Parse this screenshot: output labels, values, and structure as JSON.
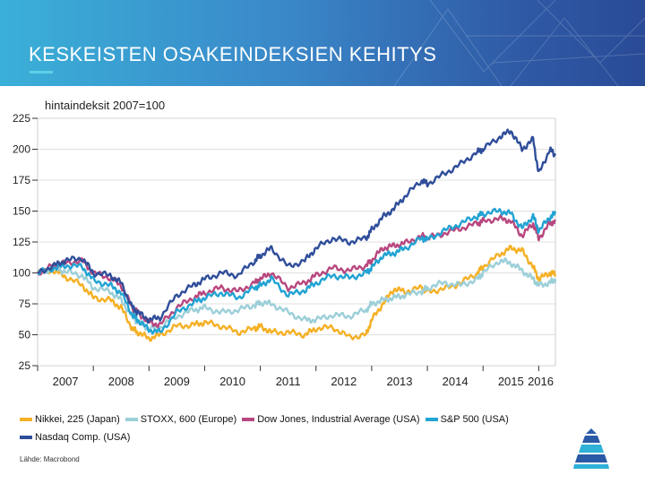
{
  "header": {
    "title": "KESKEISTEN OSAKEINDEKSIEN KEHITYS"
  },
  "subtitle": "hintaindeksit 2007=100",
  "source": "Lähde: Macrobond",
  "colors": {
    "nikkei": "#f5b025",
    "stoxx": "#9ccfd8",
    "dowjones": "#b8477f",
    "sp500": "#22a3d3",
    "nasdaq": "#2f4e9a",
    "grid": "#d6d6d6"
  },
  "chart_data": {
    "type": "line",
    "title": "KESKEISTEN OSAKEINDEKSIEN KEHITYS",
    "ylabel": "hintaindeksit 2007=100",
    "xlabel": "",
    "ylim": [
      25,
      225
    ],
    "xlim": [
      2007.0,
      2016.3
    ],
    "yticks": [
      25,
      50,
      75,
      100,
      125,
      150,
      175,
      200,
      225
    ],
    "xtick_labels": [
      "2007",
      "2008",
      "2009",
      "2010",
      "2011",
      "2012",
      "2013",
      "2014",
      "2015",
      "2016"
    ],
    "grid": true,
    "legend_position": "bottom",
    "series": [
      {
        "key": "nikkei",
        "name": "Nikkei, 225 (Japan)",
        "x": [
          2007.0,
          2007.3,
          2007.5,
          2007.8,
          2008.0,
          2008.3,
          2008.5,
          2008.7,
          2008.8,
          2009.0,
          2009.2,
          2009.5,
          2009.8,
          2010.0,
          2010.3,
          2010.6,
          2010.9,
          2011.0,
          2011.2,
          2011.5,
          2011.8,
          2012.0,
          2012.3,
          2012.6,
          2012.9,
          2013.0,
          2013.2,
          2013.4,
          2013.6,
          2013.9,
          2014.0,
          2014.3,
          2014.6,
          2014.9,
          2015.0,
          2015.3,
          2015.5,
          2015.7,
          2015.9,
          2016.0,
          2016.2,
          2016.3
        ],
        "values": [
          100,
          102,
          97,
          90,
          80,
          78,
          72,
          55,
          52,
          47,
          50,
          57,
          58,
          60,
          57,
          52,
          55,
          57,
          52,
          52,
          50,
          55,
          56,
          48,
          50,
          62,
          75,
          87,
          85,
          88,
          85,
          87,
          92,
          100,
          105,
          115,
          120,
          118,
          105,
          95,
          100,
          99
        ]
      },
      {
        "key": "stoxx",
        "name": "STOXX, 600 (Europe)",
        "x": [
          2007.0,
          2007.3,
          2007.5,
          2007.8,
          2008.0,
          2008.3,
          2008.5,
          2008.7,
          2008.8,
          2009.0,
          2009.2,
          2009.5,
          2009.8,
          2010.0,
          2010.3,
          2010.6,
          2010.9,
          2011.0,
          2011.2,
          2011.5,
          2011.8,
          2012.0,
          2012.3,
          2012.6,
          2012.9,
          2013.0,
          2013.2,
          2013.4,
          2013.6,
          2013.9,
          2014.0,
          2014.3,
          2014.6,
          2014.9,
          2015.0,
          2015.3,
          2015.5,
          2015.7,
          2015.9,
          2016.0,
          2016.2,
          2016.3
        ],
        "values": [
          100,
          104,
          101,
          98,
          88,
          85,
          78,
          65,
          60,
          55,
          56,
          65,
          70,
          72,
          68,
          70,
          74,
          76,
          75,
          68,
          62,
          62,
          66,
          65,
          70,
          75,
          78,
          80,
          82,
          85,
          88,
          92,
          90,
          95,
          100,
          110,
          108,
          102,
          95,
          90,
          92,
          95
        ]
      },
      {
        "key": "dowjones",
        "name": "Dow Jones, Industrial Average (USA)",
        "x": [
          2007.0,
          2007.3,
          2007.5,
          2007.8,
          2008.0,
          2008.3,
          2008.5,
          2008.7,
          2008.8,
          2009.0,
          2009.2,
          2009.5,
          2009.8,
          2010.0,
          2010.3,
          2010.6,
          2010.9,
          2011.0,
          2011.2,
          2011.5,
          2011.8,
          2012.0,
          2012.3,
          2012.6,
          2012.9,
          2013.0,
          2013.2,
          2013.4,
          2013.6,
          2013.9,
          2014.0,
          2014.3,
          2014.6,
          2014.9,
          2015.0,
          2015.3,
          2015.5,
          2015.7,
          2015.9,
          2016.0,
          2016.2,
          2016.3
        ],
        "values": [
          100,
          106,
          108,
          110,
          100,
          96,
          90,
          72,
          68,
          60,
          58,
          72,
          80,
          84,
          88,
          85,
          92,
          95,
          100,
          88,
          92,
          98,
          104,
          102,
          106,
          110,
          120,
          122,
          124,
          130,
          128,
          132,
          136,
          140,
          142,
          144,
          142,
          130,
          140,
          128,
          140,
          142
        ]
      },
      {
        "key": "sp500",
        "name": "S&P 500 (USA)",
        "x": [
          2007.0,
          2007.3,
          2007.5,
          2007.8,
          2008.0,
          2008.3,
          2008.5,
          2008.7,
          2008.8,
          2009.0,
          2009.2,
          2009.5,
          2009.8,
          2010.0,
          2010.3,
          2010.6,
          2010.9,
          2011.0,
          2011.2,
          2011.5,
          2011.8,
          2012.0,
          2012.3,
          2012.6,
          2012.9,
          2013.0,
          2013.2,
          2013.4,
          2013.6,
          2013.9,
          2014.0,
          2014.3,
          2014.6,
          2014.9,
          2015.0,
          2015.3,
          2015.5,
          2015.7,
          2015.9,
          2016.0,
          2016.2,
          2016.3
        ],
        "values": [
          100,
          104,
          106,
          105,
          94,
          90,
          84,
          66,
          62,
          54,
          52,
          68,
          76,
          80,
          84,
          80,
          88,
          90,
          95,
          82,
          86,
          92,
          98,
          96,
          100,
          104,
          114,
          116,
          120,
          128,
          127,
          134,
          140,
          146,
          148,
          150,
          148,
          136,
          146,
          134,
          145,
          148
        ]
      },
      {
        "key": "nasdaq",
        "name": "Nasdaq Comp. (USA)",
        "x": [
          2007.0,
          2007.3,
          2007.5,
          2007.8,
          2008.0,
          2008.3,
          2008.5,
          2008.7,
          2008.8,
          2009.0,
          2009.2,
          2009.5,
          2009.8,
          2010.0,
          2010.3,
          2010.6,
          2010.9,
          2011.0,
          2011.2,
          2011.5,
          2011.8,
          2012.0,
          2012.3,
          2012.6,
          2012.9,
          2013.0,
          2013.2,
          2013.4,
          2013.6,
          2013.9,
          2014.0,
          2014.3,
          2014.6,
          2014.9,
          2015.0,
          2015.3,
          2015.5,
          2015.7,
          2015.9,
          2016.0,
          2016.2,
          2016.3
        ],
        "values": [
          100,
          106,
          110,
          112,
          100,
          98,
          92,
          72,
          68,
          62,
          64,
          82,
          90,
          95,
          100,
          98,
          110,
          114,
          120,
          105,
          110,
          120,
          128,
          125,
          128,
          135,
          145,
          152,
          162,
          175,
          172,
          180,
          188,
          198,
          200,
          210,
          215,
          200,
          208,
          180,
          200,
          195
        ]
      }
    ]
  }
}
